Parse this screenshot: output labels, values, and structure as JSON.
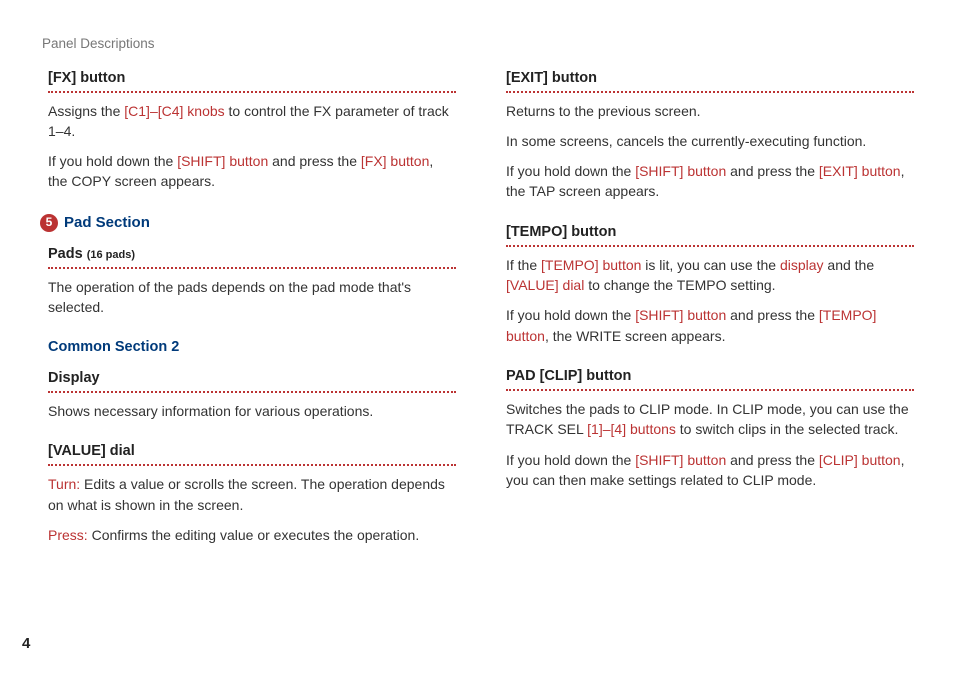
{
  "breadcrumb": "Panel Descriptions",
  "page_number": "4",
  "left": {
    "fx": {
      "heading": "[FX] button",
      "p1_a": "Assigns the ",
      "p1_b": "[C1]–[C4] knobs",
      "p1_c": " to control the FX parameter of track 1–4.",
      "p2_a": "If you hold down the ",
      "p2_b": "[SHIFT] button",
      "p2_c": " and press the ",
      "p2_d": "[FX] button",
      "p2_e": ", the COPY screen appears."
    },
    "pad_section": {
      "number": "5",
      "title": "Pad Section",
      "pads_heading": "Pads ",
      "pads_sub": "(16 pads)",
      "pads_p": "The operation of the pads depends on the pad mode that's selected.",
      "common_title": "Common Section 2",
      "display_heading": "Display",
      "display_p": "Shows necessary information for various operations.",
      "value_heading": "[VALUE] dial",
      "value_turn_label": "Turn:",
      "value_turn_text": " Edits a value or scrolls the screen. The operation depends on what is shown in the screen.",
      "value_press_label": "Press:",
      "value_press_text": " Confirms the editing value or executes the opera­tion."
    }
  },
  "right": {
    "exit": {
      "heading": "[EXIT] button",
      "p1": "Returns to the previous screen.",
      "p2": "In some screens, cancels the currently-executing func­tion.",
      "p3_a": "If you hold down the ",
      "p3_b": "[SHIFT] button",
      "p3_c": " and press the ",
      "p3_d": "[EXIT] button",
      "p3_e": ", the TAP screen appears."
    },
    "tempo": {
      "heading": "[TEMPO] button",
      "p1_a": "If the ",
      "p1_b": "[TEMPO] button",
      "p1_c": " is lit, you can use the ",
      "p1_d": "display",
      "p1_e": " and the ",
      "p1_f": "[VALUE] dial",
      "p1_g": " to change the TEMPO setting.",
      "p2_a": "If you hold down the ",
      "p2_b": "[SHIFT] button",
      "p2_c": " and press the ",
      "p2_d": "[TEMPO] button",
      "p2_e": ", the WRITE screen appears."
    },
    "padclip": {
      "heading": "PAD [CLIP] button",
      "p1_a": "Switches the pads to CLIP mode. In CLIP mode, you can use the TRACK SEL ",
      "p1_b": "[1]–[4] buttons",
      "p1_c": " to switch clips in the selected track.",
      "p2_a": "If you hold down the ",
      "p2_b": "[SHIFT] button",
      "p2_c": " and press the ",
      "p2_d": "[CLIP] button",
      "p2_e": ", you can then make settings related to CLIP mode."
    }
  }
}
